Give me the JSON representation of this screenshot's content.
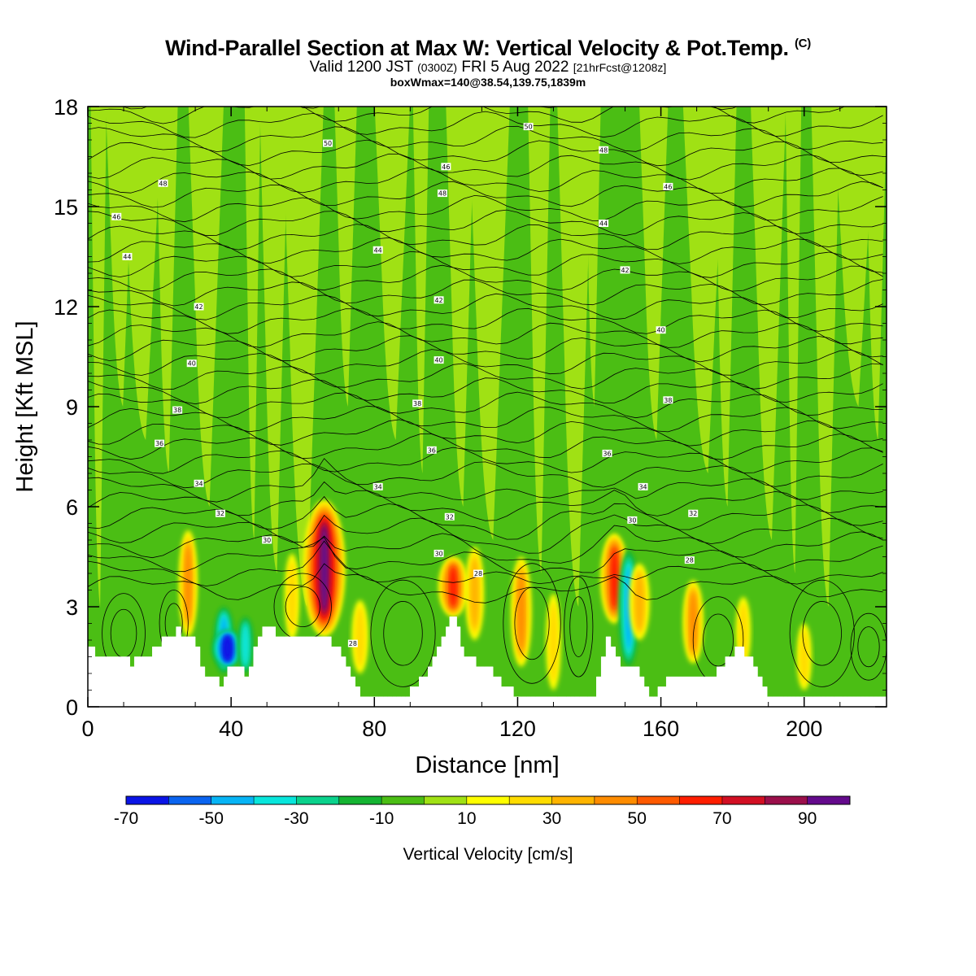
{
  "header": {
    "title": "Wind-Parallel Section at Max W: Vertical Velocity & Pot.Temp.",
    "copyright": "(C)",
    "valid_prefix": "Valid 1200 JST",
    "valid_utc": "(0300Z)",
    "valid_date": "FRI 5 Aug 2022",
    "forecast_info": "[21hrFcst@1208z]",
    "box_info": "boxWmax=140@38.54,139.75,1839m"
  },
  "chart_data": {
    "type": "heatmap",
    "xlabel": "Distance [nm]",
    "ylabel": "Height [Kft MSL]",
    "xlim": [
      0,
      223
    ],
    "ylim": [
      0,
      18
    ],
    "x_ticks": [
      0,
      40,
      80,
      120,
      160,
      200
    ],
    "y_ticks": [
      0,
      3,
      6,
      9,
      12,
      15,
      18
    ],
    "colorbar": {
      "label": "Vertical Velocity [cm/s]",
      "levels": [
        -70,
        -60,
        -50,
        -40,
        -30,
        -20,
        -10,
        0,
        10,
        20,
        30,
        40,
        50,
        60,
        70,
        80,
        90,
        100
      ],
      "tick_labels": [
        "-70",
        "-50",
        "-30",
        "-10",
        "10",
        "30",
        "50",
        "70",
        "90"
      ],
      "colors": [
        "#0a14e6",
        "#0a64f0",
        "#06b4f5",
        "#08e6dc",
        "#0ad28c",
        "#14b432",
        "#4bbe14",
        "#a0e114",
        "#ffff00",
        "#ffdc00",
        "#ffb400",
        "#ff8c00",
        "#ff5a00",
        "#ff1e00",
        "#d20f23",
        "#9b0f4b",
        "#640a8c"
      ],
      "background_field": [
        0,
        10
      ]
    },
    "vertical_velocity_cells": [
      {
        "x": 28,
        "y0": 2.1,
        "y1": 5.3,
        "w": 0.25,
        "peak": 45
      },
      {
        "x": 38,
        "y0": 1.0,
        "y1": 3.0,
        "w": -0.3,
        "peak": -40
      },
      {
        "x": 39,
        "y0": 1.2,
        "y1": 2.3,
        "w": -0.6,
        "peak": -70
      },
      {
        "x": 44,
        "y0": 1.0,
        "y1": 2.7,
        "w": -0.2,
        "peak": -30
      },
      {
        "x": 57,
        "y0": 2.0,
        "y1": 4.6,
        "w": 0.15,
        "peak": 25
      },
      {
        "x": 66,
        "y0": 2.1,
        "y1": 6.2,
        "w": 0.9,
        "peak": 95
      },
      {
        "x": 76,
        "y0": 1.0,
        "y1": 3.2,
        "w": 0.2,
        "peak": 20
      },
      {
        "x": 102,
        "y0": 2.7,
        "y1": 4.5,
        "w": 0.55,
        "peak": 60
      },
      {
        "x": 108,
        "y0": 2.0,
        "y1": 4.8,
        "w": 0.25,
        "peak": 35
      },
      {
        "x": 121,
        "y0": 1.2,
        "y1": 4.5,
        "w": 0.3,
        "peak": 40
      },
      {
        "x": 130,
        "y0": 0.5,
        "y1": 3.4,
        "w": 0.15,
        "peak": 25
      },
      {
        "x": 147,
        "y0": 2.5,
        "y1": 5.2,
        "w": 0.5,
        "peak": 65
      },
      {
        "x": 151,
        "y0": 1.2,
        "y1": 4.7,
        "w": -0.3,
        "peak": -40
      },
      {
        "x": 154,
        "y0": 2.0,
        "y1": 4.3,
        "w": 0.3,
        "peak": 35
      },
      {
        "x": 169,
        "y0": 1.3,
        "y1": 3.8,
        "w": 0.3,
        "peak": 40
      },
      {
        "x": 183,
        "y0": 1.2,
        "y1": 3.3,
        "w": 0.15,
        "peak": 25
      },
      {
        "x": 200,
        "y0": 0.5,
        "y1": 2.5,
        "w": 0.15,
        "peak": 20
      }
    ],
    "terrain_height": [
      [
        0,
        2.0
      ],
      [
        3,
        1.6
      ],
      [
        8,
        1.6
      ],
      [
        13,
        1.3
      ],
      [
        18,
        1.5
      ],
      [
        22,
        2.0
      ],
      [
        26,
        2.3
      ],
      [
        30,
        2.0
      ],
      [
        34,
        1.0
      ],
      [
        38,
        0.7
      ],
      [
        41,
        1.3
      ],
      [
        45,
        1.0
      ],
      [
        50,
        2.3
      ],
      [
        56,
        2.2
      ],
      [
        62,
        2.0
      ],
      [
        68,
        2.0
      ],
      [
        72,
        1.5
      ],
      [
        76,
        0.5
      ],
      [
        80,
        0.3
      ],
      [
        90,
        0.3
      ],
      [
        95,
        1.0
      ],
      [
        100,
        2.1
      ],
      [
        103,
        2.8
      ],
      [
        106,
        1.5
      ],
      [
        112,
        1.2
      ],
      [
        120,
        0.4
      ],
      [
        130,
        0.3
      ],
      [
        142,
        0.3
      ],
      [
        146,
        2.2
      ],
      [
        150,
        1.2
      ],
      [
        154,
        1.2
      ],
      [
        158,
        0.3
      ],
      [
        165,
        1.0
      ],
      [
        172,
        0.8
      ],
      [
        178,
        1.2
      ],
      [
        182,
        1.8
      ],
      [
        187,
        1.3
      ],
      [
        191,
        0.3
      ],
      [
        200,
        0.3
      ],
      [
        212,
        0.3
      ],
      [
        217,
        0.4
      ],
      [
        223,
        0.3
      ]
    ],
    "theta_contour_labels": [
      {
        "x": 8,
        "y": 14.7,
        "label": "46"
      },
      {
        "x": 11,
        "y": 13.5,
        "label": "44"
      },
      {
        "x": 21,
        "y": 15.7,
        "label": "48"
      },
      {
        "x": 31,
        "y": 12.0,
        "label": "42"
      },
      {
        "x": 29,
        "y": 10.3,
        "label": "40"
      },
      {
        "x": 25,
        "y": 8.9,
        "label": "38"
      },
      {
        "x": 20,
        "y": 7.9,
        "label": "36"
      },
      {
        "x": 31,
        "y": 6.7,
        "label": "34"
      },
      {
        "x": 37,
        "y": 5.8,
        "label": "32"
      },
      {
        "x": 50,
        "y": 5.0,
        "label": "30"
      },
      {
        "x": 67,
        "y": 16.9,
        "label": "50"
      },
      {
        "x": 81,
        "y": 13.7,
        "label": "44"
      },
      {
        "x": 81,
        "y": 6.6,
        "label": "34"
      },
      {
        "x": 74,
        "y": 1.9,
        "label": "28"
      },
      {
        "x": 99,
        "y": 15.4,
        "label": "48"
      },
      {
        "x": 100,
        "y": 16.2,
        "label": "46"
      },
      {
        "x": 98,
        "y": 12.2,
        "label": "42"
      },
      {
        "x": 98,
        "y": 10.4,
        "label": "40"
      },
      {
        "x": 92,
        "y": 9.1,
        "label": "38"
      },
      {
        "x": 96,
        "y": 7.7,
        "label": "36"
      },
      {
        "x": 101,
        "y": 5.7,
        "label": "32"
      },
      {
        "x": 98,
        "y": 4.6,
        "label": "30"
      },
      {
        "x": 109,
        "y": 4.0,
        "label": "28"
      },
      {
        "x": 123,
        "y": 17.4,
        "label": "50"
      },
      {
        "x": 144,
        "y": 16.7,
        "label": "48"
      },
      {
        "x": 144,
        "y": 14.5,
        "label": "44"
      },
      {
        "x": 150,
        "y": 13.1,
        "label": "42"
      },
      {
        "x": 145,
        "y": 7.6,
        "label": "36"
      },
      {
        "x": 155,
        "y": 6.6,
        "label": "34"
      },
      {
        "x": 152,
        "y": 5.6,
        "label": "30"
      },
      {
        "x": 162,
        "y": 15.6,
        "label": "46"
      },
      {
        "x": 160,
        "y": 11.3,
        "label": "40"
      },
      {
        "x": 162,
        "y": 9.2,
        "label": "38"
      },
      {
        "x": 169,
        "y": 5.8,
        "label": "32"
      },
      {
        "x": 168,
        "y": 4.4,
        "label": "28"
      }
    ]
  }
}
